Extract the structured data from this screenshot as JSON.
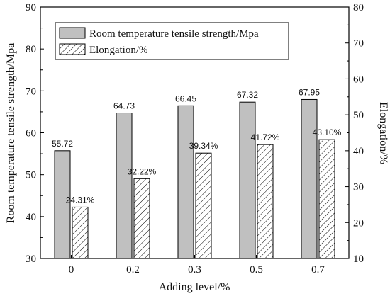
{
  "chart_data": {
    "type": "bar",
    "categories": [
      "0",
      "0.2",
      "0.3",
      "0.5",
      "0.7"
    ],
    "xlabel": "Adding level/%",
    "ylabel_left": "Room temperature tensile strength/Mpa",
    "ylabel_right": "Elongation/%",
    "ylim_left": [
      30,
      90
    ],
    "ylim_right": [
      10,
      80
    ],
    "yticks_left": [
      "30",
      "40",
      "50",
      "60",
      "70",
      "80",
      "90"
    ],
    "yticks_right": [
      "10",
      "20",
      "30",
      "40",
      "50",
      "60",
      "70",
      "80"
    ],
    "series": [
      {
        "name": "Room temperature tensile strength/Mpa",
        "axis": "left",
        "values": [
          55.72,
          64.73,
          66.45,
          67.32,
          67.95
        ],
        "labels": [
          "55.72",
          "64.73",
          "66.45",
          "67.32",
          "67.95"
        ],
        "fill": "#c0c0c0",
        "pattern": "solid"
      },
      {
        "name": "Elongation/%",
        "axis": "right",
        "values": [
          24.31,
          32.22,
          39.34,
          41.72,
          43.1
        ],
        "labels": [
          "24.31%",
          "32.22%",
          "39.34%",
          "41.72%",
          "43.10%"
        ],
        "fill": "#ffffff",
        "pattern": "hatch"
      }
    ],
    "legend": "top-left",
    "grid": false
  }
}
